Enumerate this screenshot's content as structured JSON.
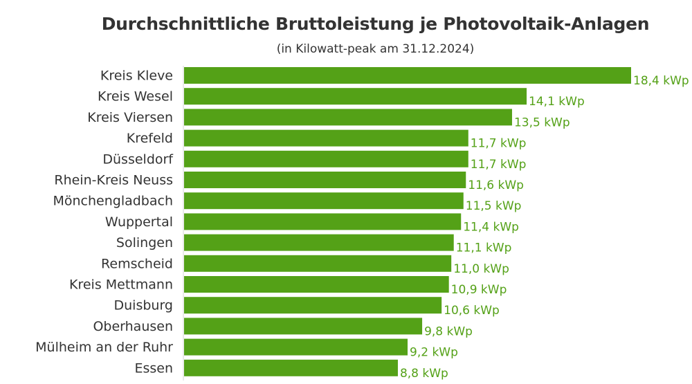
{
  "title": "Durchschnittliche Bruttoleistung je Photovoltaik-Anlagen",
  "subtitle": "(in Kilowatt-peak am 31.12.2024)",
  "colors": {
    "bar": "#54a117",
    "label": "#54a117",
    "text": "#333333",
    "axis": "#d6d6d6"
  },
  "chart_data": {
    "type": "bar",
    "orientation": "horizontal",
    "title": "Durchschnittliche Bruttoleistung je Photovoltaik-Anlagen",
    "subtitle": "(in Kilowatt-peak am 31.12.2024)",
    "categories": [
      "Kreis Kleve",
      "Kreis Wesel",
      "Kreis Viersen",
      "Krefeld",
      "Düsseldorf",
      "Rhein-Kreis Neuss",
      "Mönchengladbach",
      "Wuppertal",
      "Solingen",
      "Remscheid",
      "Kreis Mettmann",
      "Duisburg",
      "Oberhausen",
      "Mülheim an der Ruhr",
      "Essen"
    ],
    "values": [
      18.4,
      14.1,
      13.5,
      11.7,
      11.7,
      11.6,
      11.5,
      11.4,
      11.1,
      11.0,
      10.9,
      10.6,
      9.8,
      9.2,
      8.8
    ],
    "value_labels": [
      "18,4 kWp",
      "14,1 kWp",
      "13,5 kWp",
      "11,7 kWp",
      "11,7 kWp",
      "11,6 kWp",
      "11,5 kWp",
      "11,4 kWp",
      "11,1 kWp",
      "11,0 kWp",
      "10,9 kWp",
      "10,6 kWp",
      "9,8 kWp",
      "9,2 kWp",
      "8,8 kWp"
    ],
    "xlim": [
      0,
      18.4
    ],
    "grid": false,
    "legend": "none"
  }
}
